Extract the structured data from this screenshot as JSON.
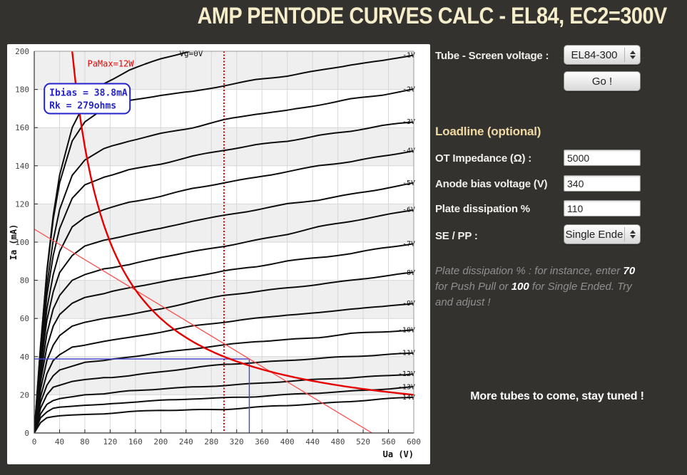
{
  "header": {
    "title": "AMP PENTODE CURVES CALC - EL84, EC2=300V"
  },
  "controls": {
    "tube_label": "Tube - Screen voltage :",
    "tube_value": "EL84-300",
    "go_label": "Go !",
    "loadline_heading": "Loadline (optional)",
    "ot": {
      "label": "OT Impedance (Ω) :",
      "value": "5000"
    },
    "anode": {
      "label": "Anode bias voltage (V)",
      "value": "340"
    },
    "plate": {
      "label": "Plate dissipation %",
      "value": "110"
    },
    "sepp": {
      "label": "SE / PP :",
      "value": "Single Ende"
    }
  },
  "note": {
    "seg1": "Plate dissipation % : for instance, enter ",
    "bold1": "70",
    "seg2": " for Push Pull or ",
    "bold2": "100",
    "seg3": " for Single Ended. Try and adjust !"
  },
  "footer": {
    "more": "More tubes to come, stay tuned !"
  },
  "chart_data": {
    "type": "line",
    "xlabel": "Ua (V)",
    "ylabel": "Ia (mA)",
    "xlim": [
      0,
      600
    ],
    "ylim": [
      0,
      200
    ],
    "x_ticks": [
      0,
      40,
      80,
      120,
      160,
      200,
      240,
      280,
      320,
      360,
      400,
      440,
      480,
      520,
      560,
      600
    ],
    "y_ticks": [
      0,
      20,
      40,
      60,
      80,
      100,
      120,
      140,
      160,
      180,
      200
    ],
    "band_rows_mA": [
      [
        20,
        40
      ],
      [
        60,
        80
      ],
      [
        100,
        120
      ],
      [
        140,
        160
      ],
      [
        180,
        200
      ]
    ],
    "series": [
      {
        "label": "Vg=0V",
        "vg": 0,
        "label_at_top": true,
        "label_ua": 248,
        "points": [
          [
            0,
            0
          ],
          [
            10,
            45
          ],
          [
            20,
            85
          ],
          [
            30,
            114
          ],
          [
            40,
            135
          ],
          [
            60,
            160
          ],
          [
            80,
            173
          ],
          [
            110,
            183
          ],
          [
            150,
            190
          ],
          [
            200,
            196
          ],
          [
            245,
            200
          ]
        ]
      },
      {
        "label": "-1V",
        "vg": -1,
        "points": [
          [
            0,
            0
          ],
          [
            10,
            46
          ],
          [
            20,
            84
          ],
          [
            30,
            112
          ],
          [
            40,
            131
          ],
          [
            60,
            153
          ],
          [
            80,
            163
          ],
          [
            110,
            170
          ],
          [
            150,
            174
          ],
          [
            200,
            177
          ],
          [
            250,
            179
          ],
          [
            300,
            182
          ],
          [
            350,
            185
          ],
          [
            400,
            187
          ],
          [
            450,
            190
          ],
          [
            500,
            193
          ],
          [
            550,
            195
          ],
          [
            600,
            198
          ]
        ]
      },
      {
        "label": "-2V",
        "vg": -2,
        "points": [
          [
            0,
            0
          ],
          [
            10,
            43
          ],
          [
            20,
            77
          ],
          [
            30,
            101
          ],
          [
            40,
            117
          ],
          [
            60,
            135
          ],
          [
            80,
            143
          ],
          [
            110,
            149
          ],
          [
            150,
            153
          ],
          [
            200,
            157
          ],
          [
            250,
            160
          ],
          [
            300,
            164
          ],
          [
            350,
            167
          ],
          [
            400,
            169
          ],
          [
            450,
            172
          ],
          [
            500,
            175
          ],
          [
            550,
            177
          ],
          [
            600,
            180
          ]
        ]
      },
      {
        "label": "-3V",
        "vg": -3,
        "points": [
          [
            0,
            0
          ],
          [
            10,
            40
          ],
          [
            20,
            72
          ],
          [
            30,
            93
          ],
          [
            40,
            107
          ],
          [
            60,
            123
          ],
          [
            80,
            130
          ],
          [
            110,
            134
          ],
          [
            150,
            138
          ],
          [
            200,
            141
          ],
          [
            250,
            145
          ],
          [
            300,
            148
          ],
          [
            350,
            151
          ],
          [
            400,
            153
          ],
          [
            450,
            156
          ],
          [
            500,
            158
          ],
          [
            550,
            161
          ],
          [
            600,
            163
          ]
        ]
      },
      {
        "label": "-4V",
        "vg": -4,
        "points": [
          [
            0,
            0
          ],
          [
            10,
            36
          ],
          [
            20,
            65
          ],
          [
            30,
            83
          ],
          [
            40,
            95
          ],
          [
            60,
            108
          ],
          [
            80,
            113
          ],
          [
            110,
            117
          ],
          [
            150,
            121
          ],
          [
            200,
            124
          ],
          [
            250,
            128
          ],
          [
            300,
            131
          ],
          [
            350,
            134
          ],
          [
            400,
            137
          ],
          [
            450,
            140
          ],
          [
            500,
            142
          ],
          [
            550,
            145
          ],
          [
            600,
            148
          ]
        ]
      },
      {
        "label": "-5V",
        "vg": -5,
        "points": [
          [
            0,
            0
          ],
          [
            10,
            34
          ],
          [
            20,
            59
          ],
          [
            30,
            74
          ],
          [
            40,
            84
          ],
          [
            60,
            93
          ],
          [
            80,
            98
          ],
          [
            110,
            101
          ],
          [
            150,
            104
          ],
          [
            200,
            107
          ],
          [
            250,
            111
          ],
          [
            300,
            114
          ],
          [
            350,
            117
          ],
          [
            400,
            120
          ],
          [
            450,
            122
          ],
          [
            500,
            125
          ],
          [
            550,
            128
          ],
          [
            600,
            131
          ]
        ]
      },
      {
        "label": "-6V",
        "vg": -6,
        "points": [
          [
            0,
            0
          ],
          [
            10,
            30
          ],
          [
            20,
            52
          ],
          [
            30,
            65
          ],
          [
            40,
            72
          ],
          [
            60,
            80
          ],
          [
            80,
            83
          ],
          [
            110,
            86
          ],
          [
            150,
            88
          ],
          [
            200,
            92
          ],
          [
            250,
            95
          ],
          [
            300,
            98
          ],
          [
            350,
            101
          ],
          [
            400,
            104
          ],
          [
            450,
            108
          ],
          [
            500,
            111
          ],
          [
            550,
            114
          ],
          [
            600,
            117
          ]
        ]
      },
      {
        "label": "-7V",
        "vg": -7,
        "points": [
          [
            0,
            0
          ],
          [
            10,
            27
          ],
          [
            20,
            45
          ],
          [
            30,
            56
          ],
          [
            40,
            62
          ],
          [
            60,
            68
          ],
          [
            80,
            71
          ],
          [
            110,
            73
          ],
          [
            150,
            76
          ],
          [
            200,
            79
          ],
          [
            250,
            82
          ],
          [
            300,
            85
          ],
          [
            350,
            87
          ],
          [
            400,
            90
          ],
          [
            450,
            92
          ],
          [
            500,
            94
          ],
          [
            550,
            97
          ],
          [
            600,
            99
          ]
        ]
      },
      {
        "label": "-8V",
        "vg": -8,
        "points": [
          [
            0,
            0
          ],
          [
            10,
            23
          ],
          [
            20,
            38
          ],
          [
            30,
            46
          ],
          [
            40,
            51
          ],
          [
            60,
            56
          ],
          [
            80,
            58
          ],
          [
            110,
            60
          ],
          [
            150,
            62
          ],
          [
            200,
            65
          ],
          [
            250,
            69
          ],
          [
            300,
            72
          ],
          [
            350,
            74
          ],
          [
            400,
            76
          ],
          [
            450,
            78
          ],
          [
            500,
            80
          ],
          [
            550,
            82
          ],
          [
            600,
            84
          ]
        ]
      },
      {
        "label": "-9V",
        "vg": -9,
        "points": [
          [
            0,
            0
          ],
          [
            10,
            19
          ],
          [
            20,
            31
          ],
          [
            30,
            38
          ],
          [
            40,
            41
          ],
          [
            60,
            45
          ],
          [
            80,
            46
          ],
          [
            110,
            48
          ],
          [
            150,
            50
          ],
          [
            200,
            53
          ],
          [
            250,
            56
          ],
          [
            300,
            58
          ],
          [
            350,
            60
          ],
          [
            400,
            62
          ],
          [
            450,
            63
          ],
          [
            500,
            65
          ],
          [
            550,
            66
          ],
          [
            600,
            68
          ]
        ]
      },
      {
        "label": "-10V",
        "vg": -10,
        "points": [
          [
            0,
            0
          ],
          [
            10,
            16
          ],
          [
            20,
            25
          ],
          [
            30,
            30
          ],
          [
            40,
            33
          ],
          [
            60,
            35
          ],
          [
            80,
            37
          ],
          [
            110,
            38
          ],
          [
            150,
            40
          ],
          [
            200,
            42
          ],
          [
            250,
            44
          ],
          [
            300,
            46
          ],
          [
            350,
            48
          ],
          [
            400,
            49
          ],
          [
            450,
            50
          ],
          [
            500,
            52
          ],
          [
            550,
            53
          ],
          [
            600,
            54
          ]
        ]
      },
      {
        "label": "-11V",
        "vg": -11,
        "points": [
          [
            0,
            0
          ],
          [
            10,
            13
          ],
          [
            20,
            20
          ],
          [
            30,
            24
          ],
          [
            40,
            25
          ],
          [
            60,
            27
          ],
          [
            80,
            28
          ],
          [
            110,
            29
          ],
          [
            150,
            30
          ],
          [
            200,
            32
          ],
          [
            250,
            34
          ],
          [
            300,
            36
          ],
          [
            350,
            37
          ],
          [
            400,
            38
          ],
          [
            450,
            39
          ],
          [
            500,
            40
          ],
          [
            550,
            41
          ],
          [
            600,
            42
          ]
        ]
      },
      {
        "label": "-12V",
        "vg": -12,
        "points": [
          [
            0,
            0
          ],
          [
            10,
            10
          ],
          [
            20,
            15
          ],
          [
            30,
            17
          ],
          [
            40,
            18
          ],
          [
            60,
            19
          ],
          [
            80,
            20
          ],
          [
            110,
            20.5
          ],
          [
            150,
            22
          ],
          [
            200,
            23
          ],
          [
            250,
            24
          ],
          [
            300,
            25
          ],
          [
            350,
            26
          ],
          [
            400,
            27
          ],
          [
            450,
            28
          ],
          [
            500,
            29
          ],
          [
            550,
            30
          ],
          [
            600,
            31
          ]
        ]
      },
      {
        "label": "-13V",
        "vg": -13,
        "points": [
          [
            0,
            0
          ],
          [
            10,
            8
          ],
          [
            20,
            11
          ],
          [
            30,
            13
          ],
          [
            40,
            13.5
          ],
          [
            60,
            14
          ],
          [
            80,
            14.5
          ],
          [
            110,
            15
          ],
          [
            150,
            16
          ],
          [
            200,
            17
          ],
          [
            250,
            18
          ],
          [
            300,
            18.5
          ],
          [
            350,
            19
          ],
          [
            400,
            20
          ],
          [
            450,
            21
          ],
          [
            500,
            22
          ],
          [
            550,
            23
          ],
          [
            600,
            24
          ]
        ]
      },
      {
        "label": "-14V",
        "vg": -14,
        "points": [
          [
            0,
            0
          ],
          [
            10,
            5.5
          ],
          [
            20,
            8
          ],
          [
            30,
            8.6
          ],
          [
            40,
            9
          ],
          [
            60,
            9.4
          ],
          [
            80,
            9.7
          ],
          [
            110,
            10
          ],
          [
            150,
            11
          ],
          [
            200,
            12
          ],
          [
            250,
            12.2
          ],
          [
            300,
            12.3
          ],
          [
            350,
            13.4
          ],
          [
            400,
            14.4
          ],
          [
            450,
            15.5
          ],
          [
            500,
            16.6
          ],
          [
            550,
            17.7
          ],
          [
            600,
            18.7
          ]
        ]
      }
    ],
    "overlays": {
      "pamax": {
        "label": "PaMax=12W",
        "watts": 12,
        "label_pos": [
          84,
          192
        ]
      },
      "loadline": {
        "points": [
          [
            0,
            106.8
          ],
          [
            534,
            0
          ]
        ],
        "impedance_ohms": 5000
      },
      "bias_point": [
        340,
        38.8
      ],
      "screen_line_ua": 300,
      "annotation": {
        "lines": [
          "Ibias = 38.8mA",
          "Rk = 279ohms"
        ],
        "pos": [
          16,
          183
        ]
      }
    },
    "style": {
      "band": "#efefef",
      "grid": "#d7d7d7",
      "curve": "#0d0d0d",
      "red": "#e60000",
      "red_light": "#ff4d4d",
      "blue": "#4444d4",
      "blue_dark": "#2323cc"
    },
    "legend_position": "right-edge-curve-labels",
    "grid": true
  }
}
